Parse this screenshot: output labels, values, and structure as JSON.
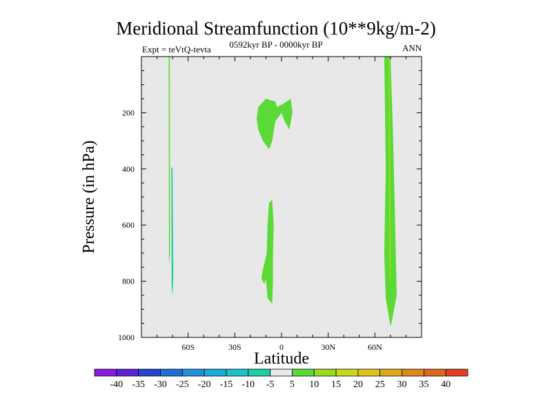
{
  "header": {
    "title": "Meridional Streamfunction (10**9kg/m-2)",
    "left_label": "Expt = teVtQ-tevta",
    "center_label": "0592kyr BP - 0000kyr BP",
    "right_label": "ANN"
  },
  "colors": {
    "plot_background": "#e8e8e8",
    "positive_5": "#5bd936",
    "positive_10": "#9bdb1d",
    "negative_5": "#1bcea6",
    "colorbar": [
      "#8a1be0",
      "#5a22d4",
      "#2545d0",
      "#1e6ed8",
      "#1d91dc",
      "#18acd8",
      "#1bc2c8",
      "#1bcea6",
      "#e8e8e8",
      "#5bd936",
      "#9bdb1d",
      "#c8d81b",
      "#dcc21b",
      "#e0a91b",
      "#e0891b",
      "#e0661b",
      "#e0401b"
    ]
  },
  "chart_data": {
    "type": "heatmap",
    "title": "Meridional Streamfunction (10**9kg/m-2)",
    "xlabel": "Latitude",
    "ylabel": "Pressure (in hPa)",
    "xlim": [
      -90,
      90
    ],
    "ylim": [
      1000,
      0
    ],
    "xticks": [
      {
        "value": -60,
        "label": "60S"
      },
      {
        "value": -30,
        "label": "30S"
      },
      {
        "value": 0,
        "label": "0"
      },
      {
        "value": 30,
        "label": "30N"
      },
      {
        "value": 60,
        "label": "60N"
      }
    ],
    "yticks": [
      {
        "value": 200,
        "label": "200"
      },
      {
        "value": 400,
        "label": "400"
      },
      {
        "value": 600,
        "label": "600"
      },
      {
        "value": 800,
        "label": "800"
      },
      {
        "value": 1000,
        "label": "1000"
      }
    ],
    "contour_regions": [
      {
        "name": "sh-polar-thin-positive",
        "level": 5,
        "points": [
          [
            -72.5,
            0
          ],
          [
            -71.8,
            0
          ],
          [
            -71.6,
            700
          ],
          [
            -72.3,
            740
          ]
        ]
      },
      {
        "name": "sh-polar-negative",
        "level": -5,
        "points": [
          [
            -70.8,
            395
          ],
          [
            -70.0,
            395
          ],
          [
            -69.5,
            780
          ],
          [
            -70.0,
            850
          ],
          [
            -70.6,
            820
          ]
        ]
      },
      {
        "name": "tropics-upper-positive",
        "level": 5,
        "points": [
          [
            -15,
            180
          ],
          [
            -10,
            150
          ],
          [
            -4,
            160
          ],
          [
            -3,
            180
          ],
          [
            2,
            165
          ],
          [
            6,
            150
          ],
          [
            7,
            200
          ],
          [
            5,
            260
          ],
          [
            2,
            230
          ],
          [
            0,
            200
          ],
          [
            -4,
            230
          ],
          [
            -6,
            300
          ],
          [
            -8,
            330
          ],
          [
            -12,
            300
          ],
          [
            -15,
            260
          ],
          [
            -16,
            220
          ]
        ]
      },
      {
        "name": "tropics-lower-positive",
        "level": 5,
        "points": [
          [
            -8,
            520
          ],
          [
            -6,
            510
          ],
          [
            -5,
            600
          ],
          [
            -5.5,
            700
          ],
          [
            -5.5,
            800
          ],
          [
            -6,
            880
          ],
          [
            -9,
            860
          ],
          [
            -10,
            790
          ],
          [
            -11,
            810
          ],
          [
            -13,
            790
          ],
          [
            -12,
            760
          ],
          [
            -9.5,
            700
          ],
          [
            -9,
            600
          ]
        ]
      },
      {
        "name": "nh-polar-positive",
        "level": 5,
        "points": [
          [
            66,
            0
          ],
          [
            70,
            0
          ],
          [
            71.5,
            250
          ],
          [
            73,
            600
          ],
          [
            74,
            850
          ],
          [
            71,
            940
          ],
          [
            70,
            960
          ],
          [
            67,
            860
          ],
          [
            66,
            700
          ],
          [
            67,
            400
          ]
        ]
      },
      {
        "name": "nh-polar-inner",
        "level": 10,
        "points": [
          [
            68.8,
            0
          ],
          [
            69.4,
            0
          ],
          [
            69.8,
            300
          ],
          [
            70.2,
            800
          ],
          [
            69.4,
            800
          ],
          [
            69.0,
            300
          ]
        ]
      }
    ],
    "colorbar": {
      "labels": [
        "-40",
        "-35",
        "-30",
        "-25",
        "-20",
        "-15",
        "-10",
        "-5",
        "5",
        "10",
        "15",
        "20",
        "25",
        "30",
        "35",
        "40"
      ]
    }
  }
}
